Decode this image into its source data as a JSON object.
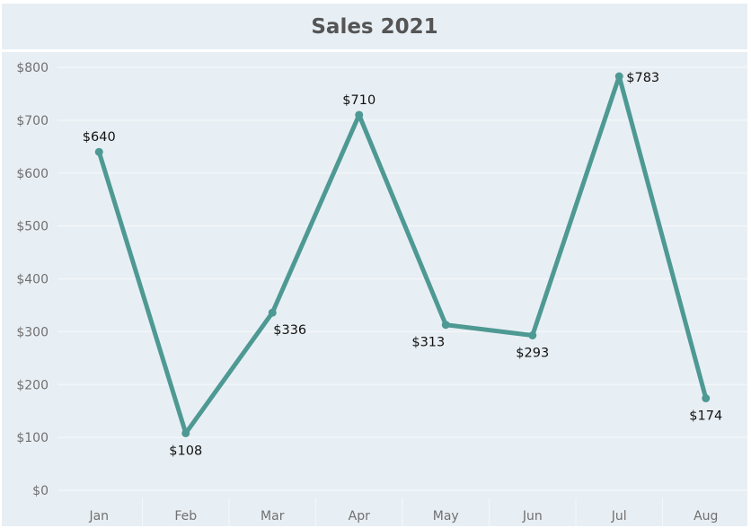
{
  "chart_data": {
    "type": "line",
    "title": "Sales 2021",
    "xlabel": "",
    "ylabel": "",
    "categories": [
      "Jan",
      "Feb",
      "Mar",
      "Apr",
      "May",
      "Jun",
      "Jul",
      "Aug"
    ],
    "values": [
      640,
      108,
      336,
      710,
      313,
      293,
      783,
      174
    ],
    "data_labels": [
      "$640",
      "$108",
      "$336",
      "$710",
      "$313",
      "$293",
      "$783",
      "$174"
    ],
    "y_ticks": [
      0,
      100,
      200,
      300,
      400,
      500,
      600,
      700,
      800
    ],
    "y_tick_labels": [
      "$0",
      "$100",
      "$200",
      "$300",
      "$400",
      "$500",
      "$600",
      "$700",
      "$800"
    ],
    "ylim": [
      0,
      800
    ],
    "grid": true,
    "legend": "none",
    "colors": {
      "line": "#4e9993",
      "background": "#e8eff4",
      "gridline": "#f4f7f9",
      "tick_text": "#707070",
      "title_text": "#555555"
    }
  }
}
